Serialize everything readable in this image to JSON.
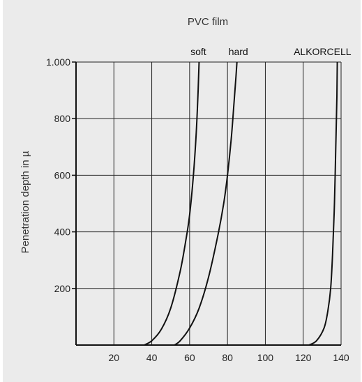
{
  "chart_data": {
    "type": "line",
    "title": "PVC film",
    "xlabel": "",
    "ylabel": "Penetration depth in µ",
    "xlim": [
      0,
      140
    ],
    "ylim": [
      0,
      1000
    ],
    "xticks": [
      20,
      40,
      60,
      80,
      100,
      120,
      140
    ],
    "xtick_labels": [
      "20",
      "40",
      "60",
      "80",
      "100",
      "120",
      "140"
    ],
    "yticks": [
      200,
      400,
      600,
      800,
      1000
    ],
    "ytick_labels": [
      "200",
      "400",
      "600",
      "800",
      "1.000"
    ],
    "grid": true,
    "series": [
      {
        "name": "soft",
        "x": [
          36,
          40,
          45,
          50,
          55,
          58,
          60,
          62,
          63.5,
          64.5,
          65
        ],
        "y": [
          0,
          15,
          55,
          130,
          260,
          370,
          460,
          600,
          750,
          900,
          1000
        ]
      },
      {
        "name": "hard",
        "x": [
          52,
          55,
          60,
          65,
          70,
          75,
          78,
          80,
          82,
          83.5,
          84.5,
          85
        ],
        "y": [
          0,
          15,
          60,
          130,
          240,
          390,
          500,
          600,
          730,
          860,
          950,
          1000
        ]
      },
      {
        "name": "ALKORCELL",
        "x": [
          123,
          127,
          131,
          133,
          134.5,
          135.5,
          136.5,
          137.2,
          137.8,
          138
        ],
        "y": [
          0,
          15,
          60,
          120,
          200,
          320,
          500,
          700,
          880,
          1000
        ]
      }
    ]
  }
}
